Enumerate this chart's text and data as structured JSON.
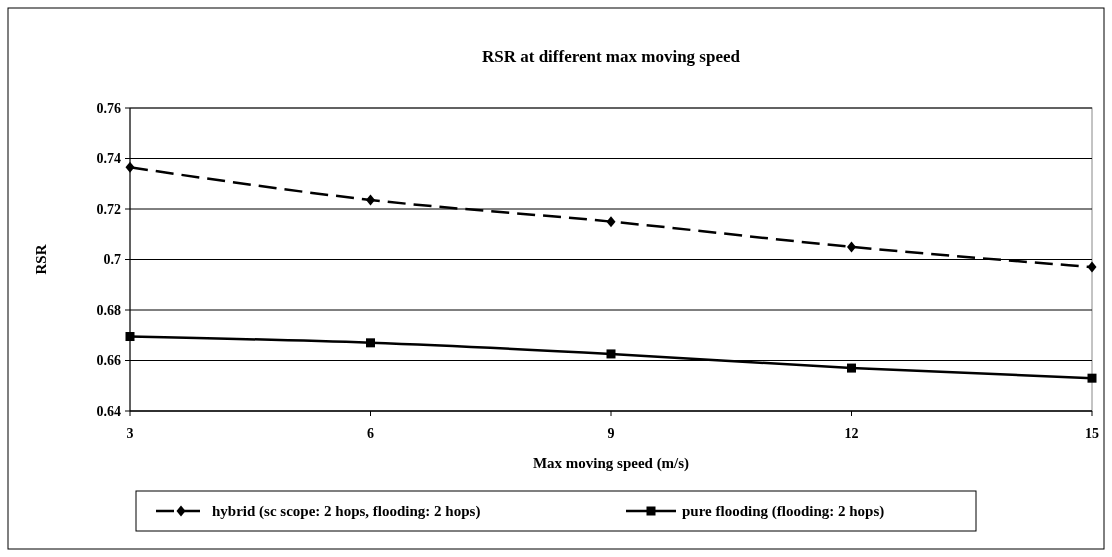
{
  "chart_data": {
    "type": "line",
    "title": "RSR at different max moving speed",
    "xlabel": "Max moving speed (m/s)",
    "ylabel": "RSR",
    "x": [
      3,
      6,
      9,
      12,
      15
    ],
    "xlim": [
      3,
      15
    ],
    "xticks": [
      3,
      6,
      9,
      12,
      15
    ],
    "ylim": [
      0.64,
      0.76
    ],
    "yticks": [
      0.64,
      0.66,
      0.68,
      0.7,
      0.72,
      0.74,
      0.76
    ],
    "grid": "y",
    "legend": "bottom",
    "series": [
      {
        "name": "hybrid (sc scope: 2 hops, flooding: 2 hops)",
        "color": "#000000",
        "marker": "diamond",
        "line_style": "dashed",
        "values": [
          0.7365,
          0.7236,
          0.715,
          0.705,
          0.697
        ]
      },
      {
        "name": "pure flooding (flooding: 2 hops)",
        "color": "#000000",
        "marker": "square",
        "line_style": "solid",
        "values": [
          0.6695,
          0.667,
          0.6626,
          0.657,
          0.653
        ]
      }
    ]
  }
}
